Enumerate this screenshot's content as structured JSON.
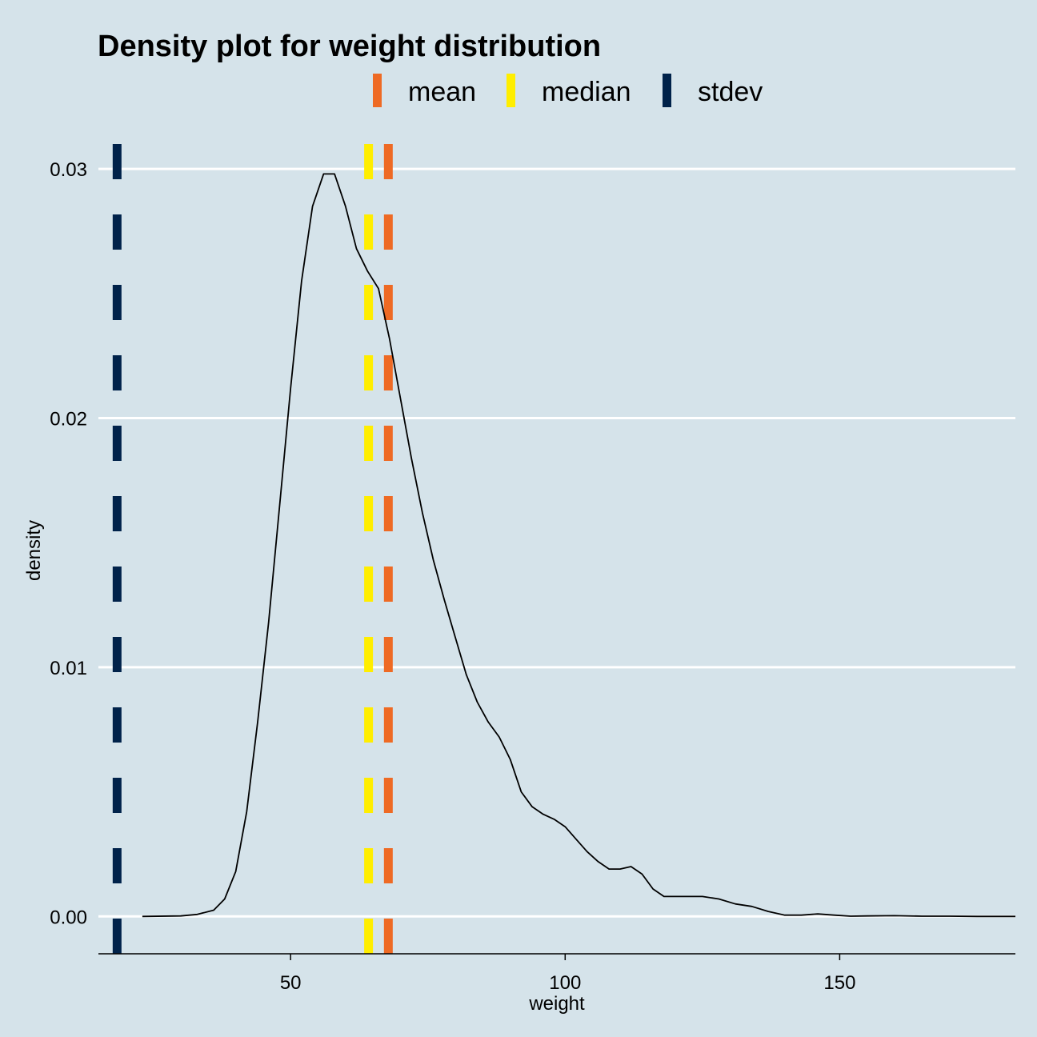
{
  "chart_data": {
    "type": "line",
    "title": "Density plot for weight distribution",
    "xlabel": "weight",
    "ylabel": "density",
    "xlim": [
      15,
      182
    ],
    "ylim": [
      -0.0015,
      0.031
    ],
    "x_ticks": [
      50,
      100,
      150
    ],
    "x_tick_labels": [
      "50",
      "100",
      "150"
    ],
    "y_ticks": [
      0.0,
      0.01,
      0.02,
      0.03
    ],
    "y_tick_labels": [
      "0.00",
      "0.01",
      "0.02",
      "0.03"
    ],
    "grid": "horizontal-major",
    "legend_position": "top",
    "series": [
      {
        "x": [
          23,
          30,
          33,
          36,
          38,
          40,
          42,
          44,
          46,
          48,
          50,
          52,
          54,
          56,
          58,
          60,
          62,
          64,
          66,
          68,
          70,
          72,
          74,
          76,
          78,
          80,
          82,
          84,
          86,
          88,
          90,
          92,
          94,
          96,
          98,
          100,
          102,
          104,
          106,
          108,
          110,
          112,
          114,
          116,
          118,
          120,
          122,
          125,
          128,
          131,
          134,
          137,
          140,
          143,
          146,
          149,
          152,
          155,
          160,
          165,
          170,
          175,
          182
        ],
        "y": [
          0,
          2e-05,
          8e-05,
          0.00025,
          0.0007,
          0.0018,
          0.0042,
          0.0078,
          0.0118,
          0.0165,
          0.0212,
          0.0255,
          0.0285,
          0.0298,
          0.0298,
          0.0285,
          0.0268,
          0.0259,
          0.0252,
          0.0232,
          0.0208,
          0.0184,
          0.0162,
          0.0143,
          0.0127,
          0.0112,
          0.0097,
          0.0086,
          0.0078,
          0.0072,
          0.0063,
          0.005,
          0.0044,
          0.0041,
          0.0039,
          0.0036,
          0.0031,
          0.0026,
          0.0022,
          0.0019,
          0.0019,
          0.002,
          0.0017,
          0.0011,
          0.0008,
          0.0008,
          0.0008,
          0.0008,
          0.0007,
          0.0005,
          0.0004,
          0.0002,
          5e-05,
          5e-05,
          0.0001,
          5e-05,
          1e-05,
          2e-05,
          3e-05,
          1e-05,
          1e-05,
          0.0,
          0.0
        ]
      }
    ],
    "vlines": [
      {
        "name": "mean",
        "x": 67.8,
        "color": "#ee6a24"
      },
      {
        "name": "median",
        "x": 64.2,
        "color": "#ffee00"
      },
      {
        "name": "stdev",
        "x": 18.4,
        "color": "#00224a"
      }
    ]
  }
}
